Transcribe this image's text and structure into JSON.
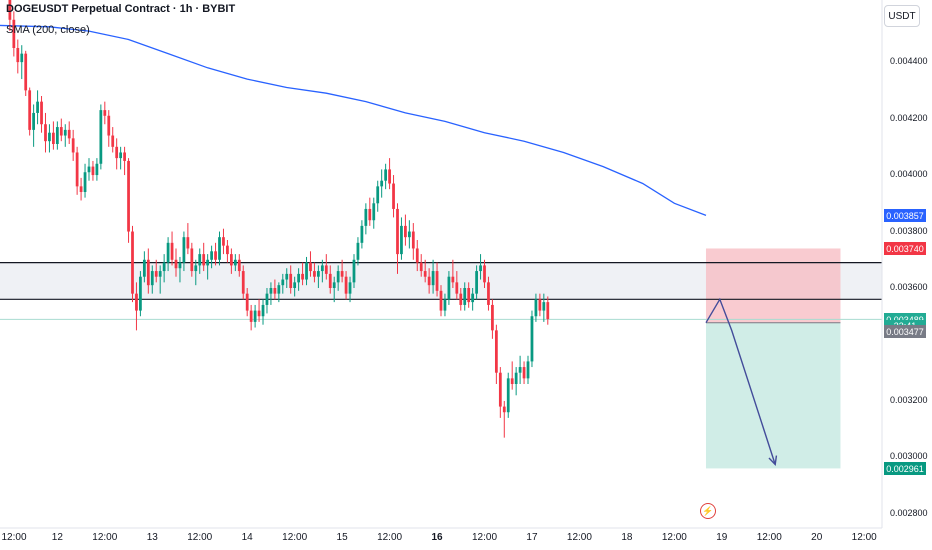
{
  "header": {
    "title": "DOGEUSDT Perpetual Contract · 1h · BYBIT",
    "indicator": "SMA (200, close)"
  },
  "currency": "USDT",
  "price_axis": {
    "ticks": [
      {
        "label": "0.004400",
        "value": 0.0044
      },
      {
        "label": "0.004200",
        "value": 0.0042
      },
      {
        "label": "0.004000",
        "value": 0.004
      },
      {
        "label": "0.003800",
        "value": 0.0038
      },
      {
        "label": "0.003600",
        "value": 0.0036
      },
      {
        "label": "0.003200",
        "value": 0.0032
      },
      {
        "label": "0.003000",
        "value": 0.003
      },
      {
        "label": "0.002800",
        "value": 0.0028
      }
    ],
    "labels": [
      {
        "text": "0.003857",
        "value": 0.003857,
        "color": "#2962ff"
      },
      {
        "text": "0.003740",
        "value": 0.00374,
        "color": "#f23645"
      },
      {
        "text": "0.003489",
        "value": 0.003489,
        "color": "#22ab94"
      },
      {
        "text": "33:41",
        "value": 0.003467,
        "color": "#22ab94"
      },
      {
        "text": "0.003477",
        "value": 0.003446,
        "color": "#787b86"
      },
      {
        "text": "0.002961",
        "value": 0.002961,
        "color": "#089981"
      }
    ]
  },
  "time_axis": [
    {
      "label": "12:00",
      "x": 0
    },
    {
      "label": "12",
      "x": 12
    },
    {
      "label": "12:00",
      "x": 24
    },
    {
      "label": "13",
      "x": 36
    },
    {
      "label": "12:00",
      "x": 48
    },
    {
      "label": "14",
      "x": 60
    },
    {
      "label": "12:00",
      "x": 72
    },
    {
      "label": "15",
      "x": 84
    },
    {
      "label": "12:00",
      "x": 96
    },
    {
      "label": "16",
      "x": 108,
      "bold": true
    },
    {
      "label": "12:00",
      "x": 120
    },
    {
      "label": "17",
      "x": 132
    },
    {
      "label": "12:00",
      "x": 144
    },
    {
      "label": "18",
      "x": 156
    },
    {
      "label": "12:00",
      "x": 168
    },
    {
      "label": "19",
      "x": 180
    },
    {
      "label": "12:00",
      "x": 192
    },
    {
      "label": "20",
      "x": 204
    },
    {
      "label": "12:00",
      "x": 216
    }
  ],
  "chart_data": {
    "type": "candlestick",
    "ylim": [
      0.00275,
      0.00462
    ],
    "xlim": [
      -2.5,
      220.5
    ],
    "up_color": "#089981",
    "down_color": "#f23645",
    "sma_color": "#2962ff",
    "candles_ohlc": [
      [
        0.00462,
        0.00465,
        0.00451,
        0.00455
      ],
      [
        0.00455,
        0.00458,
        0.00442,
        0.00445
      ],
      [
        0.00445,
        0.00448,
        0.00436,
        0.0044
      ],
      [
        0.0044,
        0.00446,
        0.00434,
        0.00443
      ],
      [
        0.00443,
        0.00444,
        0.00428,
        0.0043
      ],
      [
        0.0043,
        0.00431,
        0.00414,
        0.00416
      ],
      [
        0.00416,
        0.00425,
        0.0041,
        0.00422
      ],
      [
        0.00422,
        0.0043,
        0.00418,
        0.00426
      ],
      [
        0.00426,
        0.00428,
        0.00415,
        0.00418
      ],
      [
        0.00418,
        0.00422,
        0.00408,
        0.00412
      ],
      [
        0.00412,
        0.00418,
        0.00408,
        0.00415
      ],
      [
        0.00415,
        0.00419,
        0.00409,
        0.00411
      ],
      [
        0.00411,
        0.00419,
        0.00409,
        0.00417
      ],
      [
        0.00417,
        0.0042,
        0.00412,
        0.00414
      ],
      [
        0.00414,
        0.00418,
        0.0041,
        0.00416
      ],
      [
        0.00416,
        0.00419,
        0.00411,
        0.00413
      ],
      [
        0.00413,
        0.00416,
        0.00405,
        0.00408
      ],
      [
        0.00408,
        0.0041,
        0.00393,
        0.00396
      ],
      [
        0.00396,
        0.00399,
        0.00391,
        0.00394
      ],
      [
        0.00394,
        0.00404,
        0.00392,
        0.00401
      ],
      [
        0.00401,
        0.00406,
        0.00398,
        0.00403
      ],
      [
        0.00403,
        0.00405,
        0.00398,
        0.004
      ],
      [
        0.004,
        0.00406,
        0.00398,
        0.00404
      ],
      [
        0.00404,
        0.00425,
        0.00402,
        0.00423
      ],
      [
        0.00423,
        0.00426,
        0.00418,
        0.00421
      ],
      [
        0.00421,
        0.00423,
        0.0041,
        0.00414
      ],
      [
        0.00414,
        0.00417,
        0.00408,
        0.0041
      ],
      [
        0.0041,
        0.00413,
        0.00402,
        0.00406
      ],
      [
        0.00406,
        0.0041,
        0.00402,
        0.00408
      ],
      [
        0.00408,
        0.0041,
        0.004,
        0.00405
      ],
      [
        0.00405,
        0.00406,
        0.00376,
        0.0038
      ],
      [
        0.0038,
        0.00382,
        0.00355,
        0.00358
      ],
      [
        0.00358,
        0.00362,
        0.00345,
        0.00352
      ],
      [
        0.00352,
        0.00366,
        0.0035,
        0.00364
      ],
      [
        0.00364,
        0.00373,
        0.00362,
        0.0037
      ],
      [
        0.0037,
        0.00374,
        0.00358,
        0.00361
      ],
      [
        0.00361,
        0.00368,
        0.00358,
        0.00366
      ],
      [
        0.00366,
        0.0037,
        0.00362,
        0.00364
      ],
      [
        0.00364,
        0.00368,
        0.00358,
        0.00366
      ],
      [
        0.00366,
        0.00372,
        0.00362,
        0.00369
      ],
      [
        0.00369,
        0.00378,
        0.00366,
        0.00376
      ],
      [
        0.00376,
        0.0038,
        0.00368,
        0.0037
      ],
      [
        0.0037,
        0.00374,
        0.00364,
        0.00367
      ],
      [
        0.00367,
        0.00371,
        0.00362,
        0.00369
      ],
      [
        0.00369,
        0.0038,
        0.00366,
        0.00378
      ],
      [
        0.00378,
        0.00383,
        0.00372,
        0.00374
      ],
      [
        0.00374,
        0.00376,
        0.00364,
        0.00366
      ],
      [
        0.00366,
        0.0037,
        0.00361,
        0.00368
      ],
      [
        0.00368,
        0.00374,
        0.00365,
        0.00372
      ],
      [
        0.00372,
        0.00376,
        0.00366,
        0.00368
      ],
      [
        0.00368,
        0.00372,
        0.00363,
        0.0037
      ],
      [
        0.0037,
        0.00375,
        0.00367,
        0.00373
      ],
      [
        0.00373,
        0.00376,
        0.00368,
        0.0037
      ],
      [
        0.0037,
        0.0038,
        0.00368,
        0.00378
      ],
      [
        0.00378,
        0.00381,
        0.00372,
        0.00375
      ],
      [
        0.00375,
        0.00377,
        0.00369,
        0.00372
      ],
      [
        0.00372,
        0.00374,
        0.00365,
        0.00368
      ],
      [
        0.00368,
        0.00372,
        0.00366,
        0.0037
      ],
      [
        0.0037,
        0.00372,
        0.00364,
        0.00366
      ],
      [
        0.00366,
        0.00368,
        0.00356,
        0.00358
      ],
      [
        0.00358,
        0.0036,
        0.0035,
        0.00352
      ],
      [
        0.00352,
        0.00354,
        0.00345,
        0.00348
      ],
      [
        0.00348,
        0.00354,
        0.00346,
        0.00352
      ],
      [
        0.00352,
        0.00356,
        0.00348,
        0.0035
      ],
      [
        0.0035,
        0.00356,
        0.00347,
        0.00354
      ],
      [
        0.00354,
        0.0036,
        0.00351,
        0.00358
      ],
      [
        0.00358,
        0.00362,
        0.00354,
        0.0036
      ],
      [
        0.0036,
        0.00363,
        0.00356,
        0.00358
      ],
      [
        0.00358,
        0.00362,
        0.00355,
        0.00361
      ],
      [
        0.00361,
        0.00365,
        0.00358,
        0.00363
      ],
      [
        0.00363,
        0.00367,
        0.0036,
        0.00365
      ],
      [
        0.00365,
        0.00368,
        0.00358,
        0.0036
      ],
      [
        0.0036,
        0.00364,
        0.00357,
        0.00362
      ],
      [
        0.00362,
        0.00367,
        0.00359,
        0.00365
      ],
      [
        0.00365,
        0.00369,
        0.00361,
        0.00363
      ],
      [
        0.00363,
        0.00371,
        0.00361,
        0.00369
      ],
      [
        0.00369,
        0.00373,
        0.00364,
        0.00366
      ],
      [
        0.00366,
        0.00369,
        0.00362,
        0.00364
      ],
      [
        0.00364,
        0.00368,
        0.0036,
        0.00366
      ],
      [
        0.00366,
        0.0037,
        0.00362,
        0.00368
      ],
      [
        0.00368,
        0.00372,
        0.00363,
        0.00365
      ],
      [
        0.00365,
        0.00368,
        0.00358,
        0.0036
      ],
      [
        0.0036,
        0.00364,
        0.00355,
        0.00362
      ],
      [
        0.00362,
        0.00368,
        0.00359,
        0.00366
      ],
      [
        0.00366,
        0.0037,
        0.00362,
        0.00364
      ],
      [
        0.00364,
        0.00366,
        0.00356,
        0.00358
      ],
      [
        0.00358,
        0.00364,
        0.00355,
        0.00362
      ],
      [
        0.00362,
        0.00372,
        0.0036,
        0.0037
      ],
      [
        0.0037,
        0.00378,
        0.00368,
        0.00376
      ],
      [
        0.00376,
        0.00384,
        0.00374,
        0.00382
      ],
      [
        0.00382,
        0.0039,
        0.00379,
        0.00388
      ],
      [
        0.00388,
        0.00392,
        0.00382,
        0.00384
      ],
      [
        0.00384,
        0.00392,
        0.00381,
        0.0039
      ],
      [
        0.0039,
        0.00398,
        0.00387,
        0.00396
      ],
      [
        0.00396,
        0.00402,
        0.00392,
        0.00398
      ],
      [
        0.00398,
        0.00404,
        0.00395,
        0.00402
      ],
      [
        0.00402,
        0.00406,
        0.00395,
        0.00397
      ],
      [
        0.00397,
        0.004,
        0.00385,
        0.00388
      ],
      [
        0.00388,
        0.0039,
        0.00365,
        0.00372
      ],
      [
        0.00372,
        0.00385,
        0.0037,
        0.00382
      ],
      [
        0.00382,
        0.00386,
        0.00375,
        0.00378
      ],
      [
        0.00378,
        0.00384,
        0.00374,
        0.0038
      ],
      [
        0.0038,
        0.00383,
        0.0037,
        0.00374
      ],
      [
        0.00374,
        0.00377,
        0.00366,
        0.00369
      ],
      [
        0.00369,
        0.00372,
        0.00364,
        0.00366
      ],
      [
        0.00366,
        0.0037,
        0.00362,
        0.00364
      ],
      [
        0.00364,
        0.00367,
        0.00358,
        0.00361
      ],
      [
        0.00361,
        0.0037,
        0.00358,
        0.00366
      ],
      [
        0.00366,
        0.00369,
        0.00357,
        0.00359
      ],
      [
        0.00359,
        0.00361,
        0.0035,
        0.00352
      ],
      [
        0.00352,
        0.00358,
        0.0035,
        0.00356
      ],
      [
        0.00356,
        0.00366,
        0.00354,
        0.00364
      ],
      [
        0.00364,
        0.0037,
        0.0036,
        0.00362
      ],
      [
        0.00362,
        0.00366,
        0.00356,
        0.00358
      ],
      [
        0.00358,
        0.0036,
        0.00352,
        0.00354
      ],
      [
        0.00354,
        0.00362,
        0.00352,
        0.0036
      ],
      [
        0.0036,
        0.00362,
        0.00353,
        0.00355
      ],
      [
        0.00355,
        0.0036,
        0.00352,
        0.00358
      ],
      [
        0.00358,
        0.00368,
        0.00356,
        0.00366
      ],
      [
        0.00366,
        0.00372,
        0.00363,
        0.00368
      ],
      [
        0.00368,
        0.0037,
        0.0036,
        0.00362
      ],
      [
        0.00362,
        0.00364,
        0.00352,
        0.00354
      ],
      [
        0.00354,
        0.00356,
        0.00342,
        0.00345
      ],
      [
        0.00345,
        0.00347,
        0.00326,
        0.0033
      ],
      [
        0.0033,
        0.00332,
        0.00314,
        0.00318
      ],
      [
        0.00318,
        0.0032,
        0.00307,
        0.00316
      ],
      [
        0.00316,
        0.0033,
        0.00314,
        0.00328
      ],
      [
        0.00328,
        0.00334,
        0.00324,
        0.00326
      ],
      [
        0.00326,
        0.00332,
        0.00322,
        0.0033
      ],
      [
        0.0033,
        0.00336,
        0.00326,
        0.00332
      ],
      [
        0.00332,
        0.00334,
        0.00326,
        0.00328
      ],
      [
        0.00328,
        0.00336,
        0.00326,
        0.00334
      ],
      [
        0.00334,
        0.00352,
        0.00332,
        0.0035
      ],
      [
        0.0035,
        0.00358,
        0.00348,
        0.00356
      ],
      [
        0.00356,
        0.00358,
        0.0035,
        0.00352
      ],
      [
        0.00352,
        0.00358,
        0.00348,
        0.00355
      ],
      [
        0.00355,
        0.00357,
        0.00347,
        0.00349
      ]
    ],
    "sma": [
      [
        -3,
        0.00453
      ],
      [
        10,
        0.004525
      ],
      [
        20,
        0.00451
      ],
      [
        30,
        0.00448
      ],
      [
        40,
        0.00443
      ],
      [
        50,
        0.00438
      ],
      [
        60,
        0.00434
      ],
      [
        70,
        0.00431
      ],
      [
        80,
        0.00429
      ],
      [
        90,
        0.00426
      ],
      [
        100,
        0.00422
      ],
      [
        110,
        0.00419
      ],
      [
        120,
        0.00415
      ],
      [
        130,
        0.00412
      ],
      [
        140,
        0.00408
      ],
      [
        150,
        0.00403
      ],
      [
        160,
        0.00397
      ],
      [
        168,
        0.0039
      ],
      [
        176,
        0.003857
      ]
    ],
    "horizontal_lines": [
      {
        "value": 0.00369,
        "color": "#131722"
      },
      {
        "value": 0.00356,
        "color": "#131722"
      },
      {
        "value": 0.003489,
        "color": "#a8dcd1"
      }
    ],
    "support_band": [
      0.00356,
      0.00369
    ],
    "short_position": {
      "x_start": 176,
      "x_end": 210,
      "entry": 0.003477,
      "stop": 0.00374,
      "target": 0.002961
    },
    "projection_path": [
      [
        176,
        0.003477
      ],
      [
        179.5,
        0.00356
      ],
      [
        182.5,
        0.00345
      ],
      [
        193.5,
        0.002975
      ]
    ]
  }
}
